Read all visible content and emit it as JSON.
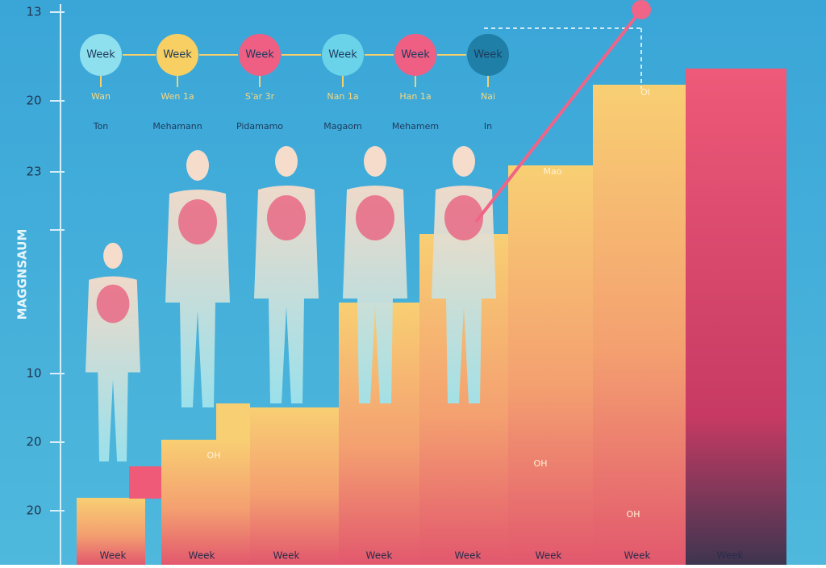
{
  "axis": {
    "title": "MAGGNSAUM",
    "labels": [
      "13",
      "20",
      "23",
      "10",
      "20",
      "20"
    ]
  },
  "milestones": [
    {
      "badge": "Week",
      "line1": "Wan",
      "line2": "Ton"
    },
    {
      "badge": "Week",
      "line1": "Wen 1a",
      "line2": "Mehamann"
    },
    {
      "badge": "Week",
      "line1": "S'ar 3r",
      "line2": "Pidamamo"
    },
    {
      "badge": "Week",
      "line1": "Nan 1a",
      "line2": "Magaom"
    },
    {
      "badge": "Week",
      "line1": "Han 1a",
      "line2": "Mehamem"
    },
    {
      "badge": "Week",
      "line1": "Nai",
      "line2": "In"
    }
  ],
  "bars": {
    "labels": [
      "Week",
      "Week",
      "Week",
      "Week",
      "Week",
      "Week",
      "Week",
      "Week"
    ],
    "notes": [
      "OH",
      "Mao",
      "OH",
      "OH",
      "Ol"
    ]
  }
}
